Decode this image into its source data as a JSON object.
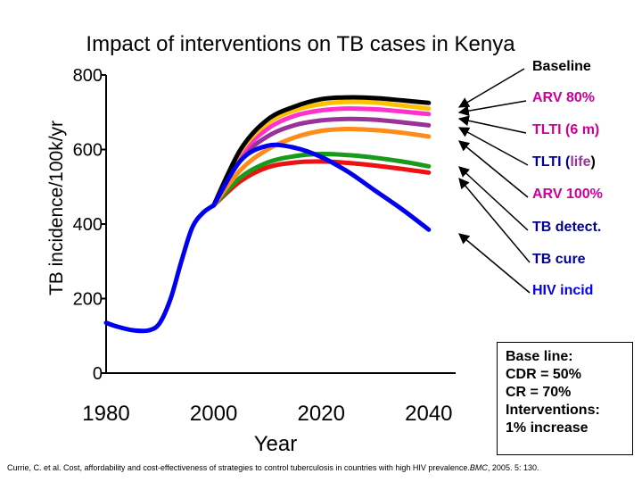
{
  "chart_data": {
    "type": "line",
    "title": "Impact of interventions on TB cases in Kenya",
    "xlabel": "Year",
    "ylabel": "TB incidence/100k/yr",
    "xlim": [
      1980,
      2045
    ],
    "ylim": [
      0,
      800
    ],
    "xticks": [
      "1980",
      "2000",
      "2020",
      "2040"
    ],
    "yticks": [
      "0",
      "200",
      "400",
      "600",
      "800"
    ],
    "common_history": {
      "x": [
        1980,
        1982,
        1985,
        1988,
        1990,
        1992,
        1994,
        1996,
        1998,
        2000
      ],
      "values": [
        135,
        125,
        115,
        115,
        135,
        200,
        300,
        390,
        430,
        450
      ]
    },
    "series": [
      {
        "name": "Baseline",
        "color": "#000000",
        "x": [
          2000,
          2005,
          2010,
          2015,
          2020,
          2025,
          2030,
          2035,
          2040
        ],
        "values": [
          450,
          600,
          680,
          715,
          735,
          740,
          738,
          732,
          725
        ]
      },
      {
        "name": "ARV 80%",
        "color": "#ffc000",
        "x": [
          2000,
          2005,
          2010,
          2015,
          2020,
          2025,
          2030,
          2035,
          2040
        ],
        "values": [
          450,
          595,
          670,
          705,
          722,
          728,
          726,
          718,
          710
        ]
      },
      {
        "name": "TLTI (6 m)",
        "color": "#ff33cc",
        "x": [
          2000,
          2005,
          2010,
          2015,
          2020,
          2025,
          2030,
          2035,
          2040
        ],
        "values": [
          450,
          585,
          655,
          690,
          705,
          710,
          708,
          702,
          695
        ]
      },
      {
        "name": "TLTI (life)",
        "color": "#993399",
        "x": [
          2000,
          2005,
          2010,
          2015,
          2020,
          2025,
          2030,
          2035,
          2040
        ],
        "values": [
          450,
          575,
          635,
          665,
          678,
          682,
          680,
          673,
          665
        ]
      },
      {
        "name": "ARV 100%",
        "color": "#ff8c1a",
        "x": [
          2000,
          2005,
          2010,
          2015,
          2020,
          2025,
          2030,
          2035,
          2040
        ],
        "values": [
          450,
          545,
          600,
          632,
          650,
          655,
          652,
          645,
          635
        ]
      },
      {
        "name": "TB detect.",
        "color": "#1a9a1a",
        "x": [
          2000,
          2005,
          2010,
          2015,
          2020,
          2025,
          2030,
          2035,
          2040
        ],
        "values": [
          450,
          525,
          565,
          582,
          588,
          585,
          578,
          568,
          555
        ]
      },
      {
        "name": "TB cure",
        "color": "#ee1111",
        "x": [
          2000,
          2005,
          2010,
          2015,
          2020,
          2025,
          2030,
          2035,
          2040
        ],
        "values": [
          450,
          515,
          552,
          565,
          568,
          564,
          557,
          548,
          538
        ]
      },
      {
        "name": "HIV incid",
        "color": "#0000ee",
        "x": [
          2000,
          2005,
          2010,
          2015,
          2020,
          2025,
          2030,
          2035,
          2040
        ],
        "values": [
          450,
          570,
          610,
          605,
          580,
          540,
          490,
          440,
          385
        ]
      }
    ]
  },
  "legend_colors": {
    "Baseline": "#000000",
    "ARV 80%": "#cc0099",
    "TLTI (6 m)": "#cc0099",
    "TLTI_life_prefix": "#000099",
    "TLTI_life_inner": "#993399",
    "ARV 100%": "#cc0099",
    "TB detect.": "#000099",
    "TB cure": "#000099",
    "HIV incid": "#0000ee"
  },
  "legend_text": {
    "tlti_life_prefix": "TLTI (",
    "tlti_life_inner": "life",
    "tlti_life_suffix": ")"
  },
  "note_box": {
    "lines": [
      "Base line:",
      "CDR = 50%",
      "CR = 70%",
      "Interventions:",
      "1% increase"
    ]
  },
  "citation": {
    "prefix": "Currie, C. et al. Cost, affordability and cost-effectiveness of strategies to control tuberculosis in countries with high HIV prevalence.",
    "journal": "BMC",
    "suffix": ", 2005. 5: 130."
  }
}
